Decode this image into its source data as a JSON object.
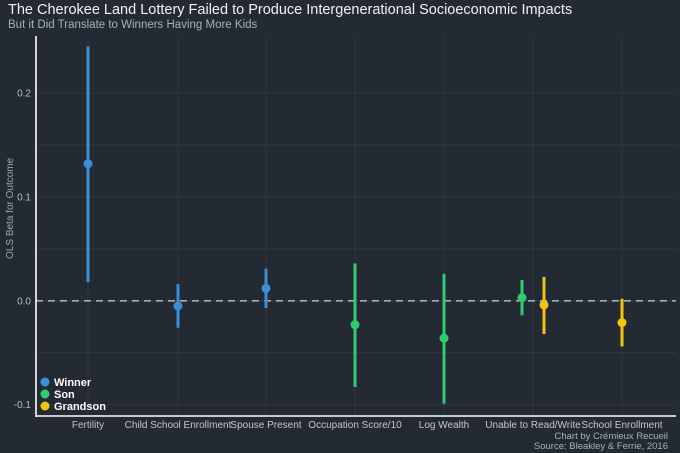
{
  "chart_data": {
    "type": "errorbar",
    "title": "The Cherokee Land Lottery Failed to Produce Intergenerational Socioeconomic Impacts",
    "subtitle": "But it Did Translate to Winners Having More Kids",
    "ylabel": "OLS Beta for Outcome",
    "xlabel": "",
    "ylim": [
      -0.11,
      0.255
    ],
    "yticks": [
      -0.1,
      0.0,
      0.1,
      0.2
    ],
    "ytick_labels": [
      "-0.1",
      "0.0",
      "0.1",
      "0.2"
    ],
    "reference_line": 0.0,
    "categories": [
      "Fertility",
      "Child School Enrollment",
      "Spouse Present",
      "Occupation Score/10",
      "Log Wealth",
      "Unable to Read/Write",
      "School Enrollment"
    ],
    "legend": [
      {
        "name": "Winner",
        "color": "#3b8fd6"
      },
      {
        "name": "Son",
        "color": "#2ecc71"
      },
      {
        "name": "Grandson",
        "color": "#f1c40f"
      }
    ],
    "points": [
      {
        "category": "Fertility",
        "group": "Winner",
        "estimate": 0.132,
        "lower": 0.018,
        "upper": 0.245
      },
      {
        "category": "Child School Enrollment",
        "group": "Winner",
        "estimate": -0.005,
        "lower": -0.026,
        "upper": 0.016
      },
      {
        "category": "Spouse Present",
        "group": "Winner",
        "estimate": 0.012,
        "lower": -0.007,
        "upper": 0.031
      },
      {
        "category": "Occupation Score/10",
        "group": "Son",
        "estimate": -0.023,
        "lower": -0.083,
        "upper": 0.036
      },
      {
        "category": "Log Wealth",
        "group": "Son",
        "estimate": -0.036,
        "lower": -0.099,
        "upper": 0.026
      },
      {
        "category": "Unable to Read/Write",
        "group": "Son",
        "estimate": 0.003,
        "lower": -0.014,
        "upper": 0.02
      },
      {
        "category": "Unable to Read/Write",
        "group": "Grandson",
        "estimate": -0.004,
        "lower": -0.032,
        "upper": 0.023
      },
      {
        "category": "School Enrollment",
        "group": "Grandson",
        "estimate": -0.021,
        "lower": -0.044,
        "upper": 0.002
      }
    ]
  },
  "caption": {
    "credit": "Chart by Crémieux Recueil",
    "source": "Source: Bleakley & Ferrie, 2016"
  }
}
